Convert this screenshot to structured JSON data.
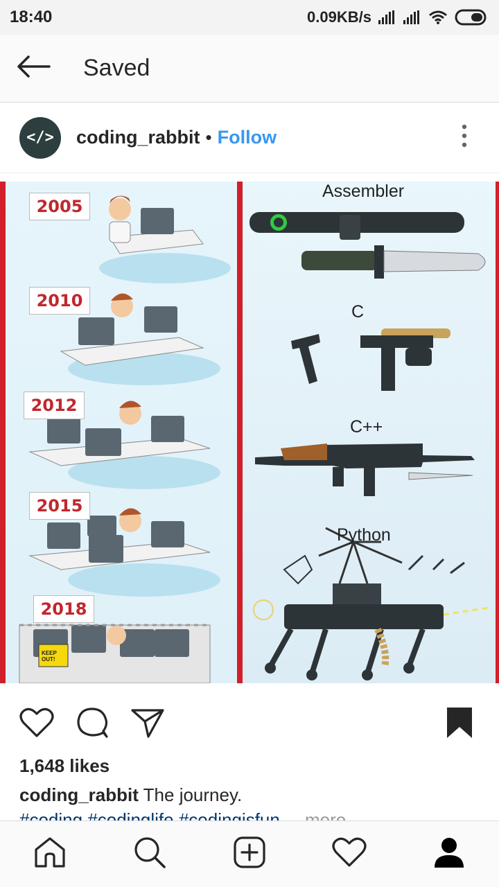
{
  "status_bar": {
    "time": "18:40",
    "network_speed": "0.09KB/s",
    "icons": [
      "signal-icon",
      "signal-icon",
      "wifi-icon",
      "battery-icon"
    ]
  },
  "app_bar": {
    "title": "Saved",
    "back_icon": "arrow-left-icon"
  },
  "post": {
    "avatar_glyph": "</>",
    "username": "coding_rabbit",
    "separator": "•",
    "follow_label": "Follow",
    "more_icon": "vertical-dots-icon",
    "image": {
      "years": [
        "2005",
        "2010",
        "2012",
        "2015",
        "2018"
      ],
      "languages": [
        "Assembler",
        "C",
        "C++",
        "Python"
      ],
      "sign_text": "KEEP OUT!"
    },
    "likes": "1,648 likes",
    "caption_user": "coding_rabbit",
    "caption_text": "The journey.",
    "hashtags": "#coding #codinglife #codingisfun",
    "more_label": "... more"
  },
  "actions": {
    "like_icon": "heart-icon",
    "comment_icon": "comment-icon",
    "share_icon": "send-icon",
    "save_icon": "bookmark-icon"
  },
  "bottom_nav": [
    "home-icon",
    "search-icon",
    "add-icon",
    "heart-icon",
    "profile-icon"
  ],
  "colors": {
    "accent_blue": "#3897f0",
    "hashtag_blue": "#003569",
    "year_red": "#c0282e",
    "divider_red": "#d0202a"
  }
}
